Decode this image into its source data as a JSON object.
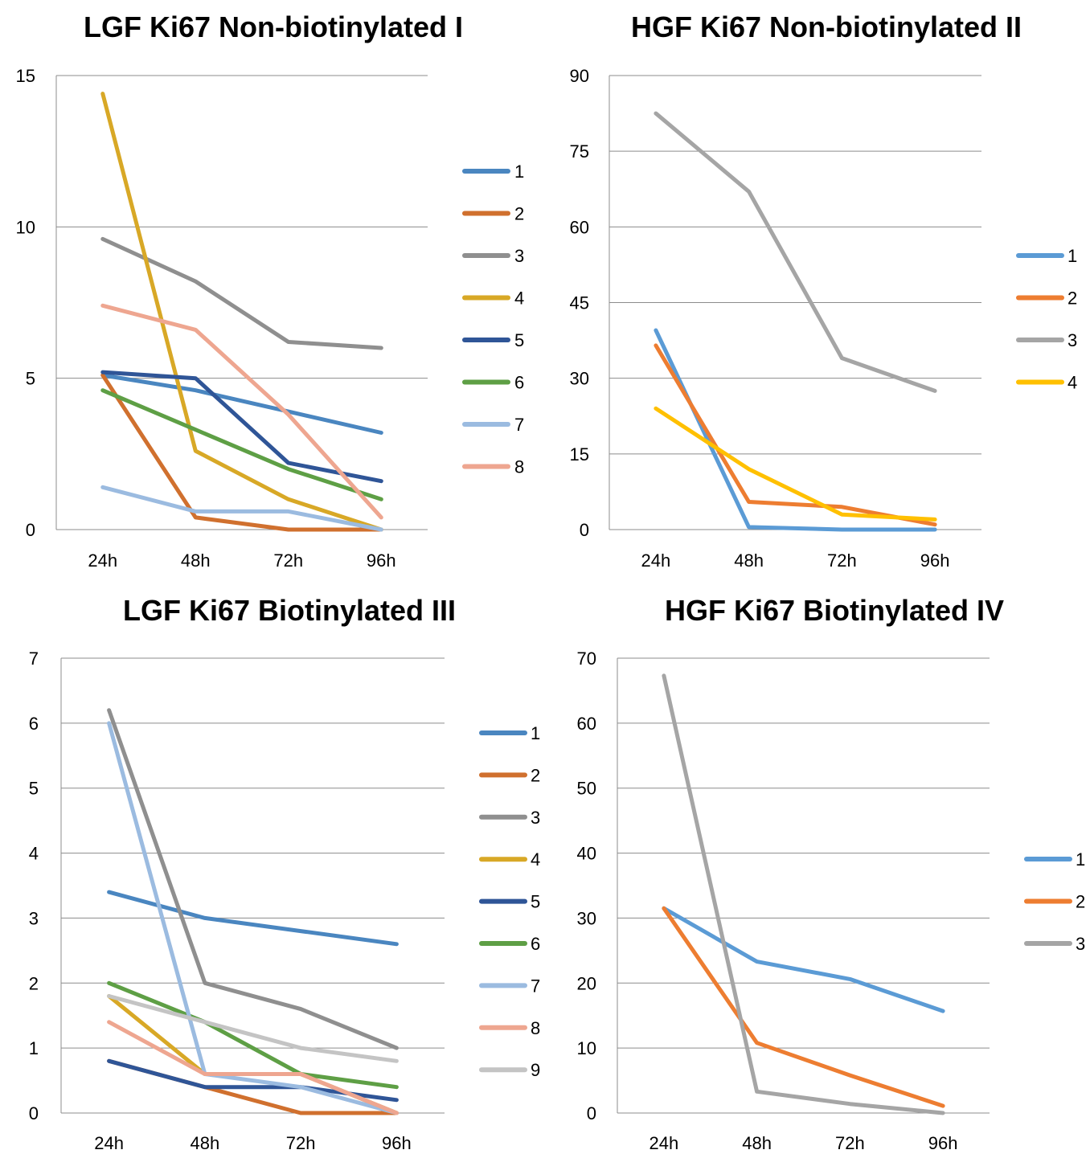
{
  "chart_data": [
    {
      "type": "line",
      "title": "LGF Ki67 Non-biotinylated I",
      "categories": [
        "24h",
        "48h",
        "72h",
        "96h"
      ],
      "ylim": [
        0,
        15
      ],
      "yticks": [
        "0",
        "5",
        "10",
        "15"
      ],
      "legend": "right",
      "grid": true,
      "series": [
        {
          "name": "1",
          "color": "#4a86c0",
          "values": [
            5.1,
            4.6,
            3.9,
            3.2
          ]
        },
        {
          "name": "2",
          "color": "#d0702e",
          "values": [
            5.1,
            0.4,
            0.0,
            0.0
          ]
        },
        {
          "name": "3",
          "color": "#8f8f8f",
          "values": [
            9.6,
            8.2,
            6.2,
            6.0
          ]
        },
        {
          "name": "4",
          "color": "#d8a826",
          "values": [
            14.4,
            2.6,
            1.0,
            0.0
          ]
        },
        {
          "name": "5",
          "color": "#2f5597",
          "values": [
            5.2,
            5.0,
            2.2,
            1.6
          ]
        },
        {
          "name": "6",
          "color": "#5e9f45",
          "values": [
            4.6,
            3.3,
            2.0,
            1.0
          ]
        },
        {
          "name": "7",
          "color": "#9bbbe0",
          "values": [
            1.4,
            0.6,
            0.6,
            0.0
          ]
        },
        {
          "name": "8",
          "color": "#eea690",
          "values": [
            7.4,
            6.6,
            3.8,
            0.4
          ]
        }
      ]
    },
    {
      "type": "line",
      "title": "HGF Ki67 Non-biotinylated II",
      "categories": [
        "24h",
        "48h",
        "72h",
        "96h"
      ],
      "ylim": [
        0,
        90
      ],
      "yticks": [
        "0",
        "15",
        "30",
        "45",
        "60",
        "75",
        "90"
      ],
      "legend": "right",
      "grid": true,
      "series": [
        {
          "name": "1",
          "color": "#5b9bd5",
          "values": [
            39.5,
            0.5,
            0.0,
            0.0
          ]
        },
        {
          "name": "2",
          "color": "#ed7d31",
          "values": [
            36.5,
            5.5,
            4.5,
            1.0
          ]
        },
        {
          "name": "3",
          "color": "#a5a5a5",
          "values": [
            82.5,
            67.0,
            34.0,
            27.5
          ]
        },
        {
          "name": "4",
          "color": "#ffc000",
          "values": [
            24.0,
            12.0,
            3.0,
            2.0
          ]
        }
      ]
    },
    {
      "type": "line",
      "title": "LGF Ki67 Biotinylated III",
      "categories": [
        "24h",
        "48h",
        "72h",
        "96h"
      ],
      "ylim": [
        0,
        7
      ],
      "yticks": [
        "0",
        "1",
        "2",
        "3",
        "4",
        "5",
        "6",
        "7"
      ],
      "legend": "right",
      "grid": true,
      "series": [
        {
          "name": "1",
          "color": "#4a86c0",
          "values": [
            3.4,
            3.0,
            2.8,
            2.6
          ]
        },
        {
          "name": "2",
          "color": "#d0702e",
          "values": [
            0.8,
            0.4,
            0.0,
            0.0
          ]
        },
        {
          "name": "3",
          "color": "#8f8f8f",
          "values": [
            6.2,
            2.0,
            1.6,
            1.0
          ]
        },
        {
          "name": "4",
          "color": "#d8a826",
          "values": [
            1.8,
            0.6,
            0.6,
            0.0
          ]
        },
        {
          "name": "5",
          "color": "#2f5597",
          "values": [
            0.8,
            0.4,
            0.4,
            0.2
          ]
        },
        {
          "name": "6",
          "color": "#5e9f45",
          "values": [
            2.0,
            1.4,
            0.6,
            0.4
          ]
        },
        {
          "name": "7",
          "color": "#9bbbe0",
          "values": [
            6.0,
            0.6,
            0.4,
            0.0
          ]
        },
        {
          "name": "8",
          "color": "#eea690",
          "values": [
            1.4,
            0.6,
            0.6,
            0.0
          ]
        },
        {
          "name": "9",
          "color": "#c4c4c4",
          "values": [
            1.8,
            1.4,
            1.0,
            0.8
          ]
        }
      ]
    },
    {
      "type": "line",
      "title": "HGF Ki67 Biotinylated IV",
      "categories": [
        "24h",
        "48h",
        "72h",
        "96h"
      ],
      "ylim": [
        0,
        70
      ],
      "yticks": [
        "0",
        "10",
        "20",
        "30",
        "40",
        "50",
        "60",
        "70"
      ],
      "legend": "right",
      "grid": true,
      "series": [
        {
          "name": "1",
          "color": "#5b9bd5",
          "values": [
            31.5,
            23.3,
            20.6,
            15.7
          ]
        },
        {
          "name": "2",
          "color": "#ed7d31",
          "values": [
            31.5,
            10.8,
            5.8,
            1.1
          ]
        },
        {
          "name": "3",
          "color": "#a5a5a5",
          "values": [
            67.3,
            3.3,
            1.4,
            0.0
          ]
        }
      ]
    }
  ]
}
